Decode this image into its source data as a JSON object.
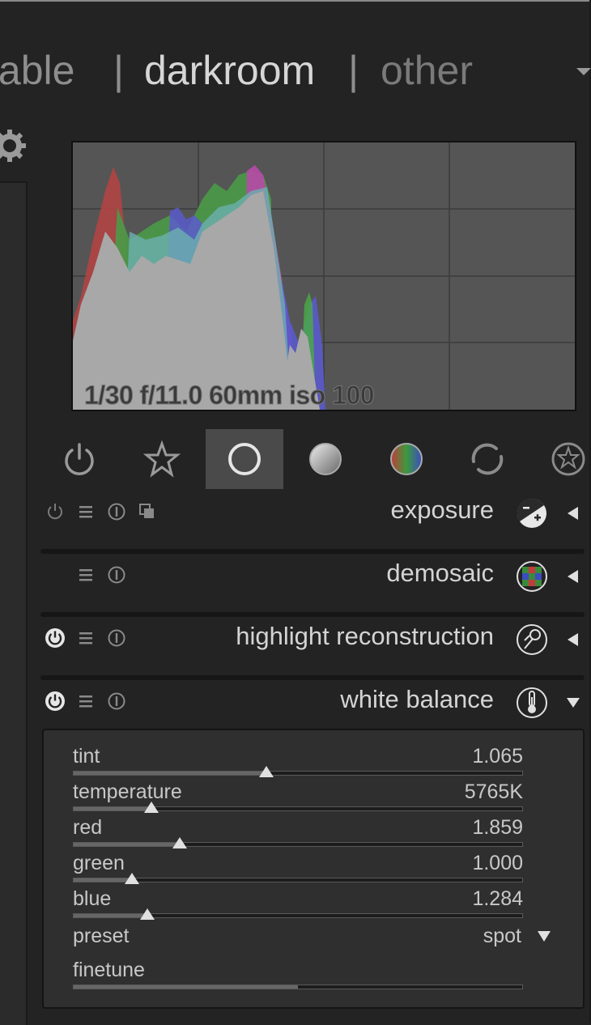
{
  "views": {
    "lighttable": "table",
    "separator": "|",
    "darkroom": "darkroom",
    "other": "other"
  },
  "histogram": {
    "exif_info": "1/30 f/11.0 60mm iso 100"
  },
  "module_groups": [
    "power-icon",
    "star-icon",
    "circle-icon",
    "sphere-icon",
    "color-icon",
    "rotate-icon",
    "effect-icon"
  ],
  "active_group": 2,
  "modules": [
    {
      "name": "exposure",
      "expanded": false
    },
    {
      "name": "demosaic",
      "expanded": false
    },
    {
      "name": "highlight reconstruction",
      "expanded": false
    },
    {
      "name": "white balance",
      "expanded": true
    }
  ],
  "white_balance": {
    "sliders": [
      {
        "label": "tint",
        "value": "1.065",
        "position": 0.43
      },
      {
        "label": "temperature",
        "value": "5765K",
        "position": 0.174
      },
      {
        "label": "red",
        "value": "1.859",
        "position": 0.238
      },
      {
        "label": "green",
        "value": "1.000",
        "position": 0.131
      },
      {
        "label": "blue",
        "value": "1.284",
        "position": 0.165
      }
    ],
    "preset_label": "preset",
    "preset_value": "spot",
    "finetune_label": "finetune",
    "finetune_position": 0.5
  },
  "colors": {
    "bg": "#232323",
    "panel": "#2f2f2f",
    "active_tab": "#4a4a4a",
    "histogram_bg": "#555555"
  }
}
